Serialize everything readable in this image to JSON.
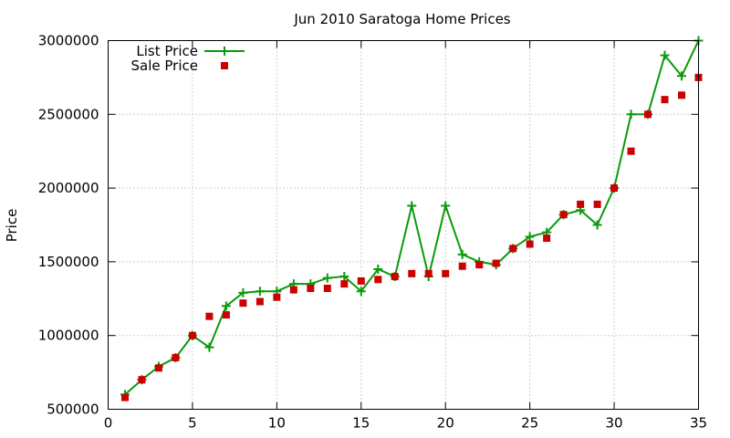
{
  "chart_data": {
    "type": "line",
    "title": "Jun 2010 Saratoga Home Prices",
    "xlabel": "",
    "ylabel": "Price",
    "xlim": [
      0,
      35
    ],
    "ylim": [
      500000,
      3000000
    ],
    "xticks": [
      "0",
      "5",
      "10",
      "15",
      "20",
      "25",
      "30",
      "35"
    ],
    "yticks": [
      "500000",
      "1000000",
      "1500000",
      "2000000",
      "2500000",
      "3000000"
    ],
    "grid": true,
    "legend_position": "top-left",
    "x": [
      1,
      2,
      3,
      4,
      5,
      6,
      7,
      8,
      9,
      10,
      11,
      12,
      13,
      14,
      15,
      16,
      17,
      18,
      19,
      20,
      21,
      22,
      23,
      24,
      25,
      26,
      27,
      28,
      29,
      30,
      31,
      32,
      33,
      34,
      35
    ],
    "series": [
      {
        "name": "List Price",
        "style": "line-plus",
        "color": "#0a9a0a",
        "values": [
          600000,
          700000,
          790000,
          850000,
          1000000,
          920000,
          1200000,
          1290000,
          1300000,
          1300000,
          1350000,
          1350000,
          1390000,
          1400000,
          1300000,
          1450000,
          1400000,
          1880000,
          1400000,
          1880000,
          1550000,
          1500000,
          1480000,
          1590000,
          1670000,
          1700000,
          1820000,
          1850000,
          1750000,
          2000000,
          2500000,
          2500000,
          2900000,
          2760000,
          3000000
        ]
      },
      {
        "name": "Sale Price",
        "style": "squares",
        "color": "#cc0000",
        "values": [
          580000,
          700000,
          780000,
          850000,
          1000000,
          1130000,
          1140000,
          1220000,
          1230000,
          1260000,
          1310000,
          1320000,
          1320000,
          1350000,
          1370000,
          1380000,
          1400000,
          1420000,
          1420000,
          1420000,
          1470000,
          1480000,
          1490000,
          1590000,
          1620000,
          1660000,
          1820000,
          1890000,
          1890000,
          2000000,
          2250000,
          2500000,
          2600000,
          2630000,
          2750000
        ]
      }
    ]
  }
}
